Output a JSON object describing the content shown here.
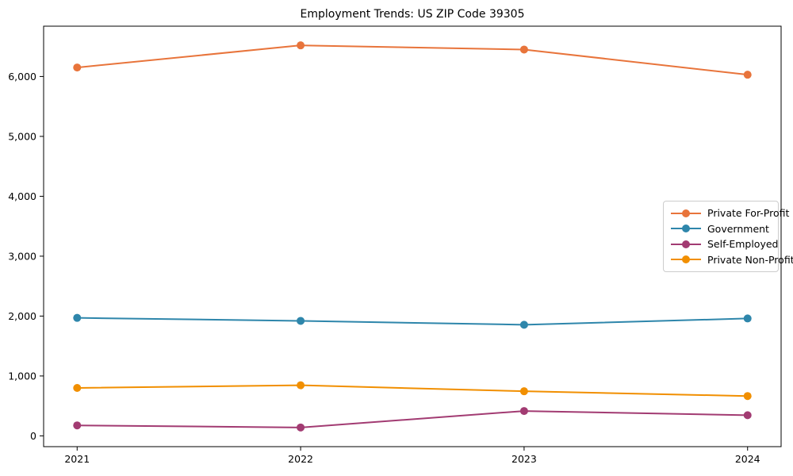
{
  "title": "Employment Trends: US ZIP Code 39305",
  "chart_data": {
    "type": "line",
    "title": "Employment Trends: US ZIP Code 39305",
    "x": [
      2021,
      2022,
      2023,
      2024
    ],
    "x_tick_labels": [
      "2021",
      "2022",
      "2023",
      "2024"
    ],
    "y_ticks": [
      0,
      1000,
      2000,
      3000,
      4000,
      5000,
      6000
    ],
    "y_tick_labels": [
      "0",
      "1,000",
      "2,000",
      "3,000",
      "4,000",
      "5,000",
      "6,000"
    ],
    "xlim": [
      2020.85,
      2024.15
    ],
    "ylim": [
      -180,
      6840
    ],
    "grid": false,
    "legend_position": "center-right",
    "series": [
      {
        "name": "Private For-Profit",
        "color": "#E8743B",
        "values": [
          6150,
          6520,
          6450,
          6030
        ]
      },
      {
        "name": "Government",
        "color": "#2E86AB",
        "values": [
          1970,
          1920,
          1855,
          1960
        ]
      },
      {
        "name": "Self-Employed",
        "color": "#A23B72",
        "values": [
          175,
          140,
          415,
          345
        ]
      },
      {
        "name": "Private Non-Profit",
        "color": "#F18F01",
        "values": [
          800,
          845,
          745,
          665
        ]
      }
    ]
  }
}
